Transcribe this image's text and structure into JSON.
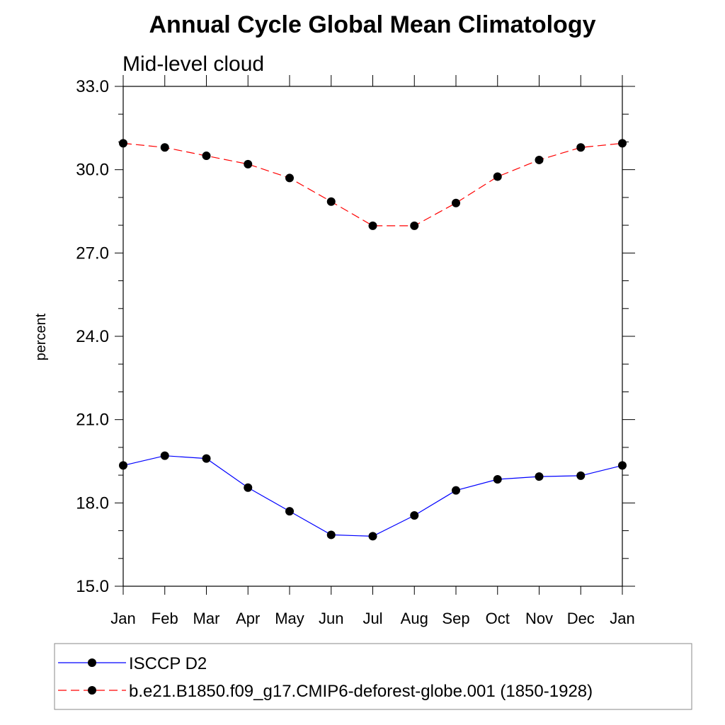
{
  "chart_data": {
    "type": "line",
    "title": "Annual Cycle Global Mean Climatology",
    "subtitle": "Mid-level cloud",
    "xlabel": "",
    "ylabel": "percent",
    "categories": [
      "Jan",
      "Feb",
      "Mar",
      "Apr",
      "May",
      "Jun",
      "Jul",
      "Aug",
      "Sep",
      "Oct",
      "Nov",
      "Dec",
      "Jan"
    ],
    "ylim": [
      15.0,
      33.0
    ],
    "yticks": [
      "15.0",
      "18.0",
      "21.0",
      "24.0",
      "27.0",
      "30.0",
      "33.0"
    ],
    "grid": false,
    "legend_position": "bottom",
    "series": [
      {
        "name": "ISCCP D2",
        "color": "#0000ff",
        "line_style": "solid",
        "marker": "filled-circle",
        "values": [
          19.35,
          19.7,
          19.6,
          18.55,
          17.7,
          16.85,
          16.8,
          17.55,
          18.45,
          18.85,
          18.95,
          18.98,
          19.35
        ]
      },
      {
        "name": "b.e21.B1850.f09_g17.CMIP6-deforest-globe.001 (1850-1928)",
        "color": "#ff0000",
        "line_style": "dashed",
        "marker": "filled-circle",
        "values": [
          30.95,
          30.8,
          30.5,
          30.2,
          29.7,
          28.85,
          27.98,
          27.98,
          28.8,
          29.75,
          30.35,
          30.8,
          30.95
        ]
      }
    ]
  }
}
